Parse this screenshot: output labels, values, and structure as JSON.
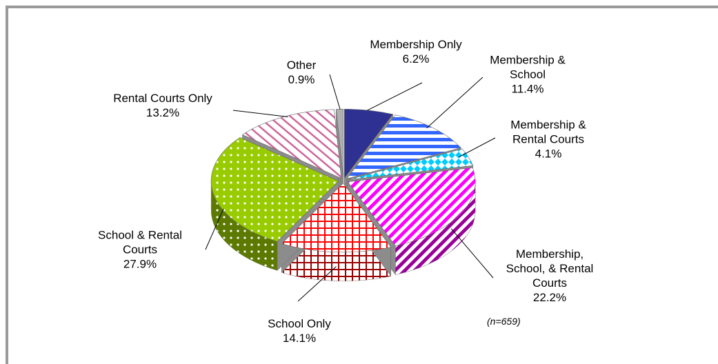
{
  "chart_data": {
    "type": "pie",
    "categories": [
      "Membership Only",
      "Membership & School",
      "Membership & Rental Courts",
      "Membership, School, & Rental Courts",
      "School Only",
      "School & Rental Courts",
      "Rental Courts Only",
      "Other"
    ],
    "values": [
      6.2,
      11.4,
      4.1,
      22.2,
      14.1,
      27.9,
      13.2,
      0.9
    ],
    "value_labels": [
      "6.2%",
      "11.4%",
      "4.1%",
      "22.2%",
      "14.1%",
      "27.9%",
      "13.2%",
      "0.9%"
    ],
    "colors": [
      "#2e3192",
      "#3366ff",
      "#00ccff",
      "#ff00ff",
      "#ff0000",
      "#99cc00",
      "#cc6699",
      "#b0b0b0"
    ],
    "annotation": "(n=659)"
  }
}
